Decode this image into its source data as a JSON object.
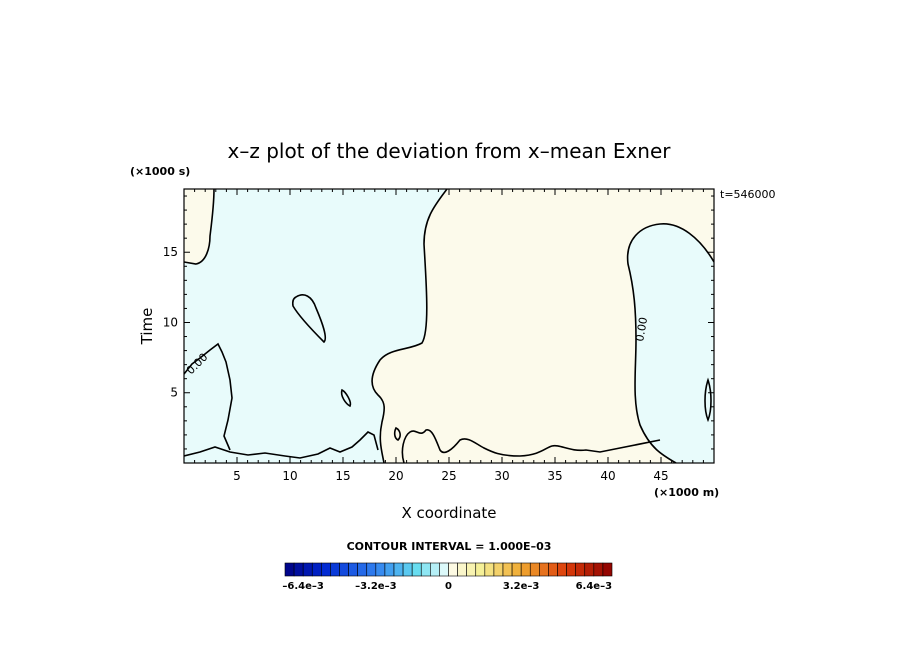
{
  "chart_data": {
    "type": "heatmap",
    "title": "x–z plot of the deviation from x–mean Exner",
    "xlabel": "X coordinate",
    "ylabel": "Time",
    "x_unit": "(×1000 m)",
    "y_unit": "(×1000 s)",
    "time_stamp": "t=546000",
    "xlim": [
      0,
      50
    ],
    "ylim": [
      0,
      19.5
    ],
    "x_ticks": [
      5,
      10,
      15,
      20,
      25,
      30,
      35,
      40,
      45
    ],
    "y_ticks": [
      5,
      10,
      15
    ],
    "contour_interval_text": "CONTOUR INTERVAL = 1.000E–03",
    "contour_labels": [
      "0.00",
      "0.00"
    ],
    "colorbar": {
      "min": -0.0072,
      "max": 0.0072,
      "levels": 36,
      "tick_labels": [
        "–6.4e–3",
        "–3.2e–3",
        "0",
        "3.2e–3",
        "6.4e–3"
      ],
      "tick_values": [
        -0.0064,
        -0.0032,
        0,
        0.0032,
        0.0064
      ]
    },
    "regions": [
      {
        "sign": "negative",
        "color": "#e8fbfb",
        "description_values": "x 0-24 km, most of domain, plus x 44-50 km at t 0-17.5 ks"
      },
      {
        "sign": "positive",
        "color": "#fcfaeb",
        "description_values": "x 24-44 km and near x 0 above t 14.5 ks"
      }
    ],
    "colors": {
      "negative_fill": "#e8fbfb",
      "positive_fill": "#fcfaeb",
      "contour": "#000000"
    }
  }
}
